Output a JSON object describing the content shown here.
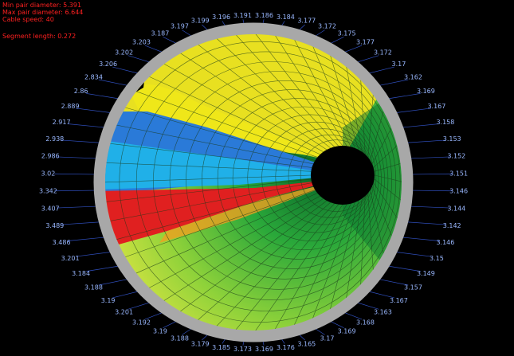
{
  "info": {
    "min_diameter": "Min pair diameter: 5.391",
    "max_diameter": "Max pair diameter: 6.644",
    "cable_speed": "Cable speed: 40",
    "segment_length": "Segment length: 0.272"
  },
  "ring_labels": [
    "3.186",
    "3.184",
    "3.177",
    "3.172",
    "3.175",
    "3.177",
    "3.172",
    "3.17",
    "3.162",
    "3.169",
    "3.167",
    "3.158",
    "3.153",
    "3.152",
    "3.151",
    "3.146",
    "3.144",
    "3.142",
    "3.146",
    "3.15",
    "3.149",
    "3.157",
    "3.167",
    "3.163",
    "3.168",
    "3.169",
    "3.17",
    "3.165",
    "3.176",
    "3.169",
    "3.173",
    "3.185",
    "3.179",
    "3.188",
    "3.19",
    "3.192",
    "3.201",
    "3.19",
    "3.188",
    "3.184",
    "3.201",
    "3.486",
    "3.489",
    "3.407",
    "3.342",
    "3.02",
    "2.986",
    "2.938",
    "2.917",
    "2.889",
    "2.86",
    "2.834",
    "3.206",
    "3.202",
    "3.203",
    "3.187",
    "3.197",
    "3.199",
    "3.196",
    "3.191"
  ]
}
